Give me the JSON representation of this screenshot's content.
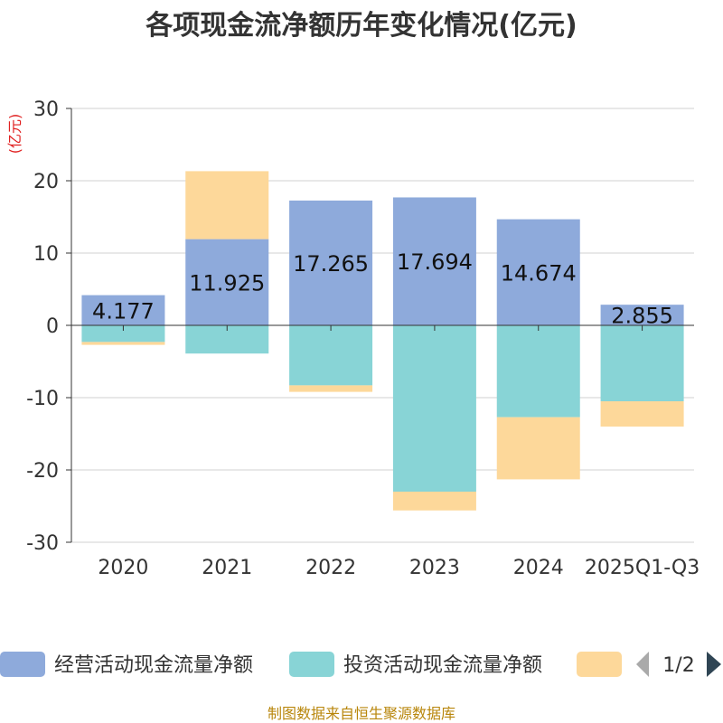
{
  "chart_data": {
    "type": "bar",
    "stacked": true,
    "title": "各项现金流净额历年变化情况(亿元)",
    "ylabel": "(亿元)",
    "xlabel": "",
    "categories": [
      "2020",
      "2021",
      "2022",
      "2023",
      "2024",
      "2025Q1-Q3"
    ],
    "ylim": [
      -30,
      30
    ],
    "yticks": [
      30,
      20,
      10,
      0,
      -10,
      -20,
      -30
    ],
    "grid": true,
    "series": [
      {
        "name": "经营活动现金流量净额",
        "color": "#8eaadb",
        "values": [
          4.177,
          11.925,
          17.265,
          17.694,
          14.674,
          2.855
        ],
        "data_labels": [
          "4.177",
          "11.925",
          "17.265",
          "17.694",
          "14.674",
          "2.855"
        ]
      },
      {
        "name": "投资活动现金流量净额",
        "color": "#88d4d6",
        "values": [
          -2.3,
          -3.9,
          -8.3,
          -23.0,
          -12.7,
          -10.5
        ]
      },
      {
        "name": "",
        "color": "#fdd89a",
        "values": [
          -0.4,
          9.4,
          -0.9,
          -2.6,
          -8.6,
          -3.5
        ]
      }
    ],
    "legend": {
      "position": "bottom",
      "page": "1/2"
    }
  },
  "source": "制图数据来自恒生聚源数据库"
}
